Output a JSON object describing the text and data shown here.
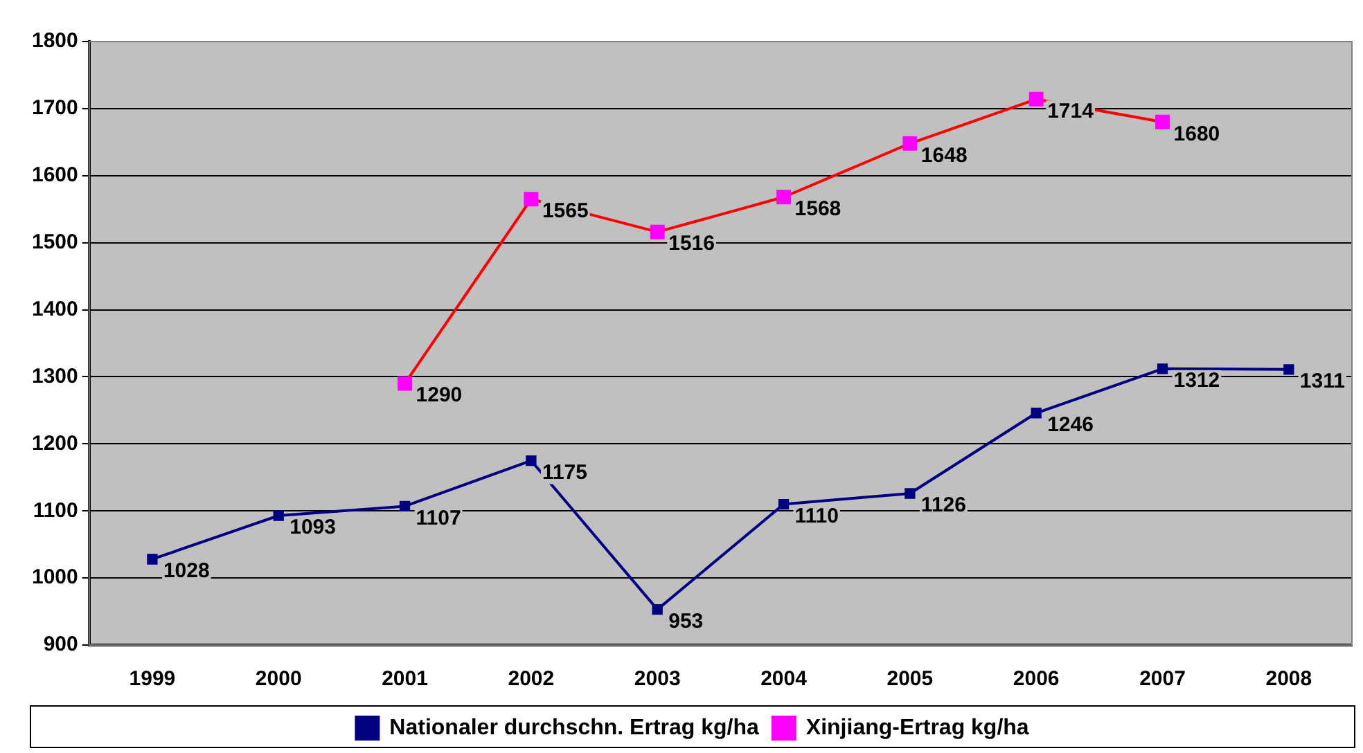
{
  "chart_data": {
    "type": "line",
    "categories": [
      "1999",
      "2000",
      "2001",
      "2002",
      "2003",
      "2004",
      "2005",
      "2006",
      "2007",
      "2008"
    ],
    "series": [
      {
        "name": "Nationaler durchschn. Ertrag kg/ha",
        "color": "#000080",
        "values": [
          1028,
          1093,
          1107,
          1175,
          953,
          1110,
          1126,
          1246,
          1312,
          1311
        ]
      },
      {
        "name": "Xinjiang-Ertrag kg/ha",
        "color": "#ff0000",
        "colors": [
          "#ff00ff",
          "#ff00ff",
          "#ff00ff",
          "#ff00ff",
          "#ff00ff",
          "#ff00ff",
          "#ff00ff",
          "#ff00ff",
          "#ff00ff",
          "#ff00ff"
        ],
        "values": [
          null,
          null,
          1290,
          1565,
          1516,
          1568,
          1648,
          1714,
          1680,
          null
        ]
      }
    ],
    "ylim": [
      900,
      1800
    ],
    "yticks": [
      900,
      1000,
      1100,
      1200,
      1300,
      1400,
      1500,
      1600,
      1700,
      1800
    ],
    "grid": "y",
    "legend": "bottom",
    "marker": "square",
    "line_style": "solid",
    "data_labels": true
  }
}
